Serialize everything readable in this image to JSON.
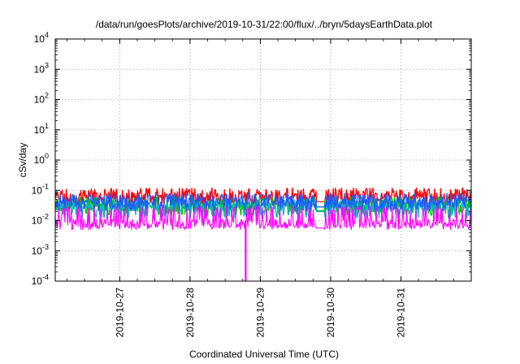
{
  "chart_data": {
    "type": "line",
    "title": "/data/run/goesPlots/archive/2019-10-31/22:00/flux/../bryn/5daysEarthData.plot",
    "xlabel": "Coordinated Universal Time (UTC)",
    "ylabel": "cSv/day",
    "y_scale": "log",
    "ylim": [
      0.0001,
      10000
    ],
    "y_ticks": [
      {
        "base": "10",
        "exp": "-4"
      },
      {
        "base": "10",
        "exp": "-3"
      },
      {
        "base": "10",
        "exp": "-2"
      },
      {
        "base": "10",
        "exp": "-1"
      },
      {
        "base": "10",
        "exp": "0"
      },
      {
        "base": "10",
        "exp": "1"
      },
      {
        "base": "10",
        "exp": "2"
      },
      {
        "base": "10",
        "exp": "3"
      },
      {
        "base": "10",
        "exp": "4"
      }
    ],
    "xlim": [
      "2019-10-26 02:00",
      "2019-11-01 00:00"
    ],
    "x_ticks": [
      "2019-10-27",
      "2019-10-28",
      "2019-10-29",
      "2019-10-30",
      "2019-10-31"
    ],
    "grid": true,
    "series": [
      {
        "color": "#ff0000",
        "min": 0.03,
        "max": 0.12,
        "typical": 0.06
      },
      {
        "color": "#00cc00",
        "min": 0.015,
        "max": 0.06,
        "typical": 0.03
      },
      {
        "color": "#00bbbb",
        "min": 0.012,
        "max": 0.05,
        "typical": 0.028
      },
      {
        "color": "#1e5cff",
        "min": 0.02,
        "max": 0.08,
        "typical": 0.04
      },
      {
        "color": "#ff00ff",
        "min": 0.005,
        "max": 0.03,
        "typical": 0.008
      }
    ],
    "dropout": {
      "color": "#ff00ff",
      "time": "2019-10-28 19:00",
      "value": 0.0001
    }
  }
}
